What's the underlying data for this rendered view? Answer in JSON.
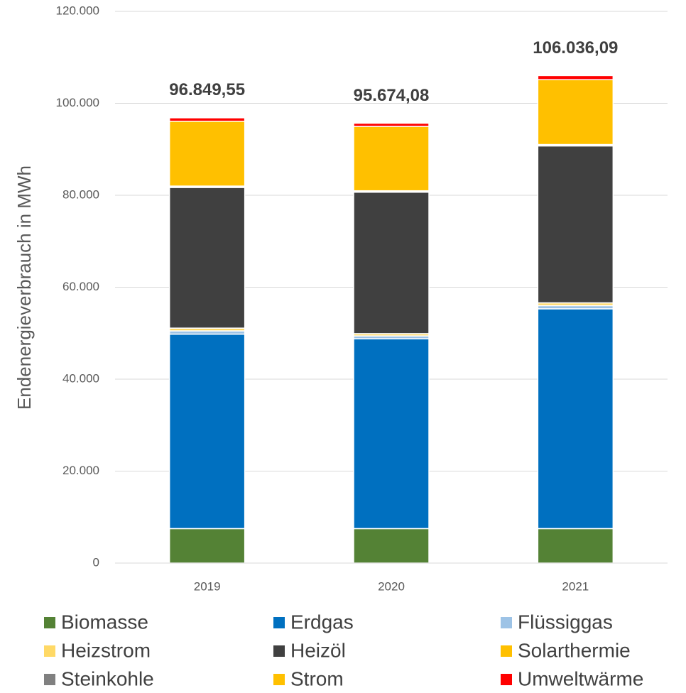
{
  "chart_data": {
    "type": "stacked_bar",
    "y_label": "Endenergieverbrauch in MWh",
    "categories": [
      "2019",
      "2020",
      "2021"
    ],
    "series": [
      {
        "name": "Biomasse",
        "color": "#548235",
        "values": [
          7500,
          7500,
          7500
        ]
      },
      {
        "name": "Erdgas",
        "color": "#0070c0",
        "values": [
          42300,
          41300,
          47800
        ]
      },
      {
        "name": "Flüssiggas",
        "color": "#9dc3e6",
        "values": [
          700,
          600,
          700
        ]
      },
      {
        "name": "Heizstrom",
        "color": "#ffd966",
        "values": [
          600,
          500,
          600
        ]
      },
      {
        "name": "Heizöl",
        "color": "#404040",
        "values": [
          30600,
          30774,
          34136
        ]
      },
      {
        "name": "Solarthermie",
        "color": "#ffc000",
        "values": [
          200,
          200,
          200
        ]
      },
      {
        "name": "Steinkohle",
        "color": "#808080",
        "values": [
          100,
          100,
          100
        ]
      },
      {
        "name": "Strom",
        "color": "#ffc000",
        "values": [
          14100,
          14000,
          14100
        ]
      },
      {
        "name": "Umweltwärme",
        "color": "#ff0000",
        "values": [
          750,
          700,
          900
        ]
      }
    ],
    "totals": [
      96849.55,
      95674.08,
      106036.09
    ],
    "total_labels": [
      "96.849,55",
      "95.674,08",
      "106.036,09"
    ],
    "ylim": [
      0,
      120000
    ],
    "yticks": [
      0,
      {
        "value": 20000,
        "label": "20.000"
      },
      {
        "value": 40000,
        "label": "40.000"
      },
      {
        "value": 60000,
        "label": "60.000"
      },
      {
        "value": 80000,
        "label": "80.000"
      },
      {
        "value": 100000,
        "label": "100.000"
      },
      {
        "value": 120000,
        "label": "120.000"
      }
    ],
    "grid": true,
    "legend": "bottom"
  }
}
